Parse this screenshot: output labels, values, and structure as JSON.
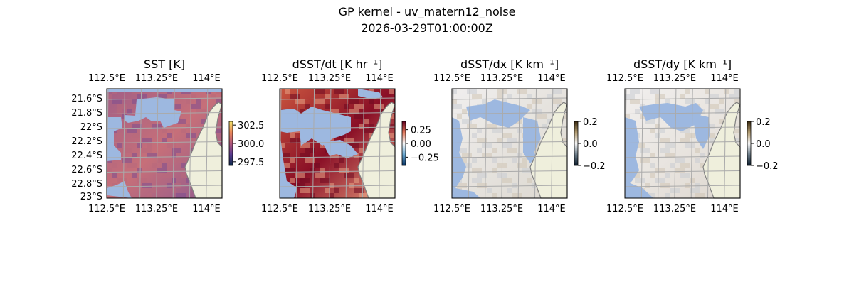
{
  "chart_data": {
    "type": "heatmap",
    "title": "GP kernel - uv_matern12_noise",
    "subtitle": "2026-03-29T01:00:00Z",
    "x_ticks": [
      "112.5°E",
      "113.25°E",
      "114°E"
    ],
    "y_ticks": [
      "21.6°S",
      "21.8°S",
      "22°S",
      "22.2°S",
      "22.4°S",
      "22.6°S",
      "22.8°S",
      "23°S"
    ],
    "panels": [
      {
        "title": "SST [K]",
        "cbar_ticks": [
          "302.5",
          "300.0",
          "297.5"
        ],
        "cbar_range": [
          297,
          303
        ],
        "colormap": "thermal",
        "colors": [
          "#0b2a4a",
          "#5a3a8f",
          "#b0567a",
          "#e8865a",
          "#f4e46a"
        ],
        "show_y_ticks": true
      },
      {
        "title": "dSST/dt [K hr⁻¹]",
        "cbar_ticks": [
          "0.25",
          "0.00",
          "−0.25"
        ],
        "cbar_range": [
          -0.4,
          0.4
        ],
        "colormap": "RdBu_r",
        "colors": [
          "#053061",
          "#6aa8d0",
          "#f7f7f7",
          "#e0785c",
          "#67001f"
        ],
        "show_y_ticks": false
      },
      {
        "title": "dSST/dx [K km⁻¹]",
        "cbar_ticks": [
          "0.2",
          "0.0",
          "−0.2"
        ],
        "cbar_range": [
          -0.2,
          0.2
        ],
        "colormap": "diff",
        "colors": [
          "#0a1a2a",
          "#6e7e8a",
          "#f5f5f5",
          "#b09a70",
          "#3a2a10"
        ],
        "show_y_ticks": false
      },
      {
        "title": "dSST/dy [K km⁻¹]",
        "cbar_ticks": [
          "0.2",
          "0.0",
          "−0.2"
        ],
        "cbar_range": [
          -0.2,
          0.2
        ],
        "colormap": "diff",
        "colors": [
          "#0a1a2a",
          "#6e7e8a",
          "#f5f5f5",
          "#b09a70",
          "#3a2a10"
        ],
        "show_y_ticks": false
      }
    ]
  }
}
